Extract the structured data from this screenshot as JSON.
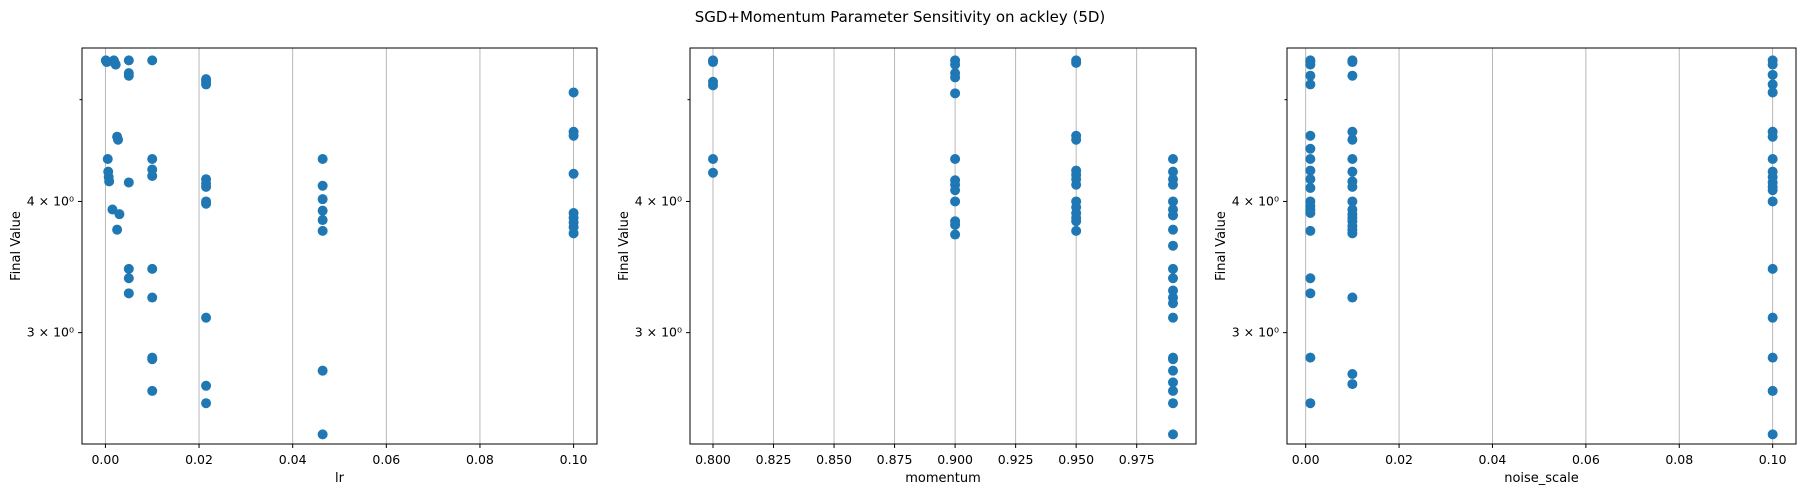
{
  "figure": {
    "title": "SGD+Momentum Parameter Sensitivity on ackley (5D)"
  },
  "colors": {
    "points": "#1f77b4",
    "grid": "#b0b0b0",
    "axes": "#000000"
  },
  "chart_data": [
    {
      "type": "scatter",
      "xlabel": "lr",
      "ylabel": "Final Value",
      "xlim": [
        -0.005,
        0.105
      ],
      "ylim": [
        2.35,
        5.6
      ],
      "yscale": "log",
      "grid": "vertical",
      "xticks": [
        0.0,
        0.02,
        0.04,
        0.06,
        0.08,
        0.1
      ],
      "xtick_labels": [
        "0.00",
        "0.02",
        "0.04",
        "0.06",
        "0.08",
        "0.10"
      ],
      "yticks": [
        3,
        4
      ],
      "ytick_labels": [
        "3 × 10⁰",
        "4 × 10⁰"
      ],
      "points": [
        {
          "x": 0.0001,
          "y": 5.45
        },
        {
          "x": 0.0002,
          "y": 5.44
        },
        {
          "x": 0.0003,
          "y": 5.43
        },
        {
          "x": 0.0005,
          "y": 4.39
        },
        {
          "x": 0.0006,
          "y": 4.27
        },
        {
          "x": 0.0007,
          "y": 4.22
        },
        {
          "x": 0.0008,
          "y": 4.18
        },
        {
          "x": 0.0015,
          "y": 3.93
        },
        {
          "x": 0.0018,
          "y": 5.45
        },
        {
          "x": 0.002,
          "y": 5.42
        },
        {
          "x": 0.0022,
          "y": 5.4
        },
        {
          "x": 0.0025,
          "y": 4.61
        },
        {
          "x": 0.0027,
          "y": 4.58
        },
        {
          "x": 0.003,
          "y": 3.89
        },
        {
          "x": 0.0025,
          "y": 3.76
        },
        {
          "x": 0.005,
          "y": 5.45
        },
        {
          "x": 0.005,
          "y": 5.3
        },
        {
          "x": 0.005,
          "y": 5.27
        },
        {
          "x": 0.005,
          "y": 4.17
        },
        {
          "x": 0.005,
          "y": 3.45
        },
        {
          "x": 0.005,
          "y": 3.38
        },
        {
          "x": 0.005,
          "y": 3.27
        },
        {
          "x": 0.01,
          "y": 5.45
        },
        {
          "x": 0.01,
          "y": 4.39
        },
        {
          "x": 0.01,
          "y": 4.29
        },
        {
          "x": 0.01,
          "y": 4.23
        },
        {
          "x": 0.01,
          "y": 3.45
        },
        {
          "x": 0.01,
          "y": 3.24
        },
        {
          "x": 0.01,
          "y": 2.84
        },
        {
          "x": 0.01,
          "y": 2.83
        },
        {
          "x": 0.01,
          "y": 2.64
        },
        {
          "x": 0.0215,
          "y": 5.23
        },
        {
          "x": 0.0215,
          "y": 5.2
        },
        {
          "x": 0.0215,
          "y": 5.17
        },
        {
          "x": 0.0215,
          "y": 4.2
        },
        {
          "x": 0.0215,
          "y": 4.16
        },
        {
          "x": 0.0215,
          "y": 4.13
        },
        {
          "x": 0.0215,
          "y": 4.0
        },
        {
          "x": 0.0215,
          "y": 3.98
        },
        {
          "x": 0.0215,
          "y": 3.1
        },
        {
          "x": 0.0215,
          "y": 2.67
        },
        {
          "x": 0.0215,
          "y": 2.57
        },
        {
          "x": 0.0464,
          "y": 4.39
        },
        {
          "x": 0.0464,
          "y": 4.14
        },
        {
          "x": 0.0464,
          "y": 4.02
        },
        {
          "x": 0.0464,
          "y": 3.92
        },
        {
          "x": 0.0464,
          "y": 3.84
        },
        {
          "x": 0.0464,
          "y": 3.75
        },
        {
          "x": 0.0464,
          "y": 2.76
        },
        {
          "x": 0.0464,
          "y": 2.4
        },
        {
          "x": 0.1,
          "y": 5.08
        },
        {
          "x": 0.1,
          "y": 4.66
        },
        {
          "x": 0.1,
          "y": 4.62
        },
        {
          "x": 0.1,
          "y": 4.25
        },
        {
          "x": 0.1,
          "y": 3.9
        },
        {
          "x": 0.1,
          "y": 3.86
        },
        {
          "x": 0.1,
          "y": 3.82
        },
        {
          "x": 0.1,
          "y": 3.78
        },
        {
          "x": 0.1,
          "y": 3.73
        }
      ]
    },
    {
      "type": "scatter",
      "xlabel": "momentum",
      "ylabel": "Final Value",
      "xlim": [
        0.7905,
        0.9995
      ],
      "ylim": [
        2.35,
        5.6
      ],
      "yscale": "log",
      "grid": "vertical",
      "xticks": [
        0.8,
        0.825,
        0.85,
        0.875,
        0.9,
        0.925,
        0.95,
        0.975
      ],
      "xtick_labels": [
        "0.800",
        "0.825",
        "0.850",
        "0.875",
        "0.900",
        "0.925",
        "0.950",
        "0.975"
      ],
      "yticks": [
        3,
        4
      ],
      "ytick_labels": [
        "3 × 10⁰",
        "4 × 10⁰"
      ],
      "points": [
        {
          "x": 0.8,
          "y": 5.45
        },
        {
          "x": 0.8,
          "y": 5.43
        },
        {
          "x": 0.8,
          "y": 5.2
        },
        {
          "x": 0.8,
          "y": 5.16
        },
        {
          "x": 0.8,
          "y": 4.39
        },
        {
          "x": 0.8,
          "y": 4.26
        },
        {
          "x": 0.9,
          "y": 5.45
        },
        {
          "x": 0.9,
          "y": 5.4
        },
        {
          "x": 0.9,
          "y": 5.3
        },
        {
          "x": 0.9,
          "y": 5.25
        },
        {
          "x": 0.9,
          "y": 5.07
        },
        {
          "x": 0.9,
          "y": 4.39
        },
        {
          "x": 0.9,
          "y": 4.19
        },
        {
          "x": 0.9,
          "y": 4.15
        },
        {
          "x": 0.9,
          "y": 4.1
        },
        {
          "x": 0.9,
          "y": 4.0
        },
        {
          "x": 0.9,
          "y": 3.83
        },
        {
          "x": 0.9,
          "y": 3.8
        },
        {
          "x": 0.9,
          "y": 3.72
        },
        {
          "x": 0.95,
          "y": 5.45
        },
        {
          "x": 0.95,
          "y": 5.42
        },
        {
          "x": 0.95,
          "y": 4.62
        },
        {
          "x": 0.95,
          "y": 4.58
        },
        {
          "x": 0.95,
          "y": 4.28
        },
        {
          "x": 0.95,
          "y": 4.24
        },
        {
          "x": 0.95,
          "y": 4.2
        },
        {
          "x": 0.95,
          "y": 4.15
        },
        {
          "x": 0.95,
          "y": 4.0
        },
        {
          "x": 0.95,
          "y": 3.95
        },
        {
          "x": 0.95,
          "y": 3.9
        },
        {
          "x": 0.95,
          "y": 3.86
        },
        {
          "x": 0.95,
          "y": 3.83
        },
        {
          "x": 0.95,
          "y": 3.75
        },
        {
          "x": 0.99,
          "y": 4.39
        },
        {
          "x": 0.99,
          "y": 4.27
        },
        {
          "x": 0.99,
          "y": 4.2
        },
        {
          "x": 0.99,
          "y": 4.15
        },
        {
          "x": 0.99,
          "y": 4.0
        },
        {
          "x": 0.99,
          "y": 3.93
        },
        {
          "x": 0.99,
          "y": 3.88
        },
        {
          "x": 0.99,
          "y": 3.76
        },
        {
          "x": 0.99,
          "y": 3.63
        },
        {
          "x": 0.99,
          "y": 3.45
        },
        {
          "x": 0.99,
          "y": 3.38
        },
        {
          "x": 0.99,
          "y": 3.29
        },
        {
          "x": 0.99,
          "y": 3.24
        },
        {
          "x": 0.99,
          "y": 3.2
        },
        {
          "x": 0.99,
          "y": 3.1
        },
        {
          "x": 0.99,
          "y": 2.84
        },
        {
          "x": 0.99,
          "y": 2.83
        },
        {
          "x": 0.99,
          "y": 2.76
        },
        {
          "x": 0.99,
          "y": 2.69
        },
        {
          "x": 0.99,
          "y": 2.64
        },
        {
          "x": 0.99,
          "y": 2.57
        },
        {
          "x": 0.99,
          "y": 2.4
        }
      ]
    },
    {
      "type": "scatter",
      "xlabel": "noise_scale",
      "ylabel": "Final Value",
      "xlim": [
        -0.004,
        0.105
      ],
      "ylim": [
        2.35,
        5.6
      ],
      "yscale": "log",
      "grid": "vertical",
      "xticks": [
        0.0,
        0.02,
        0.04,
        0.06,
        0.08,
        0.1
      ],
      "xtick_labels": [
        "0.00",
        "0.02",
        "0.04",
        "0.06",
        "0.08",
        "0.10"
      ],
      "yticks": [
        3,
        4
      ],
      "ytick_labels": [
        "3 × 10⁰",
        "4 × 10⁰"
      ],
      "points": [
        {
          "x": 0.001,
          "y": 5.45
        },
        {
          "x": 0.001,
          "y": 5.43
        },
        {
          "x": 0.001,
          "y": 5.4
        },
        {
          "x": 0.001,
          "y": 5.27
        },
        {
          "x": 0.001,
          "y": 5.17
        },
        {
          "x": 0.001,
          "y": 4.62
        },
        {
          "x": 0.001,
          "y": 4.49
        },
        {
          "x": 0.001,
          "y": 4.39
        },
        {
          "x": 0.001,
          "y": 4.28
        },
        {
          "x": 0.001,
          "y": 4.2
        },
        {
          "x": 0.001,
          "y": 4.12
        },
        {
          "x": 0.001,
          "y": 4.0
        },
        {
          "x": 0.001,
          "y": 3.96
        },
        {
          "x": 0.001,
          "y": 3.93
        },
        {
          "x": 0.001,
          "y": 3.9
        },
        {
          "x": 0.001,
          "y": 3.75
        },
        {
          "x": 0.001,
          "y": 3.38
        },
        {
          "x": 0.001,
          "y": 3.27
        },
        {
          "x": 0.001,
          "y": 2.84
        },
        {
          "x": 0.001,
          "y": 2.57
        },
        {
          "x": 0.01,
          "y": 5.45
        },
        {
          "x": 0.01,
          "y": 5.43
        },
        {
          "x": 0.01,
          "y": 5.27
        },
        {
          "x": 0.01,
          "y": 4.66
        },
        {
          "x": 0.01,
          "y": 4.58
        },
        {
          "x": 0.01,
          "y": 4.39
        },
        {
          "x": 0.01,
          "y": 4.27
        },
        {
          "x": 0.01,
          "y": 4.18
        },
        {
          "x": 0.01,
          "y": 4.13
        },
        {
          "x": 0.01,
          "y": 4.0
        },
        {
          "x": 0.01,
          "y": 3.93
        },
        {
          "x": 0.01,
          "y": 3.89
        },
        {
          "x": 0.01,
          "y": 3.86
        },
        {
          "x": 0.01,
          "y": 3.83
        },
        {
          "x": 0.01,
          "y": 3.79
        },
        {
          "x": 0.01,
          "y": 3.76
        },
        {
          "x": 0.01,
          "y": 3.73
        },
        {
          "x": 0.01,
          "y": 3.24
        },
        {
          "x": 0.01,
          "y": 2.74
        },
        {
          "x": 0.01,
          "y": 2.68
        },
        {
          "x": 0.1,
          "y": 5.45
        },
        {
          "x": 0.1,
          "y": 5.4
        },
        {
          "x": 0.1,
          "y": 5.28
        },
        {
          "x": 0.1,
          "y": 5.17
        },
        {
          "x": 0.1,
          "y": 5.08
        },
        {
          "x": 0.1,
          "y": 4.66
        },
        {
          "x": 0.1,
          "y": 4.61
        },
        {
          "x": 0.1,
          "y": 4.39
        },
        {
          "x": 0.1,
          "y": 4.27
        },
        {
          "x": 0.1,
          "y": 4.22
        },
        {
          "x": 0.1,
          "y": 4.17
        },
        {
          "x": 0.1,
          "y": 4.13
        },
        {
          "x": 0.1,
          "y": 4.1
        },
        {
          "x": 0.1,
          "y": 4.0
        },
        {
          "x": 0.1,
          "y": 3.45
        },
        {
          "x": 0.1,
          "y": 3.1
        },
        {
          "x": 0.1,
          "y": 2.84
        },
        {
          "x": 0.1,
          "y": 2.64
        },
        {
          "x": 0.1,
          "y": 2.4
        }
      ]
    }
  ]
}
